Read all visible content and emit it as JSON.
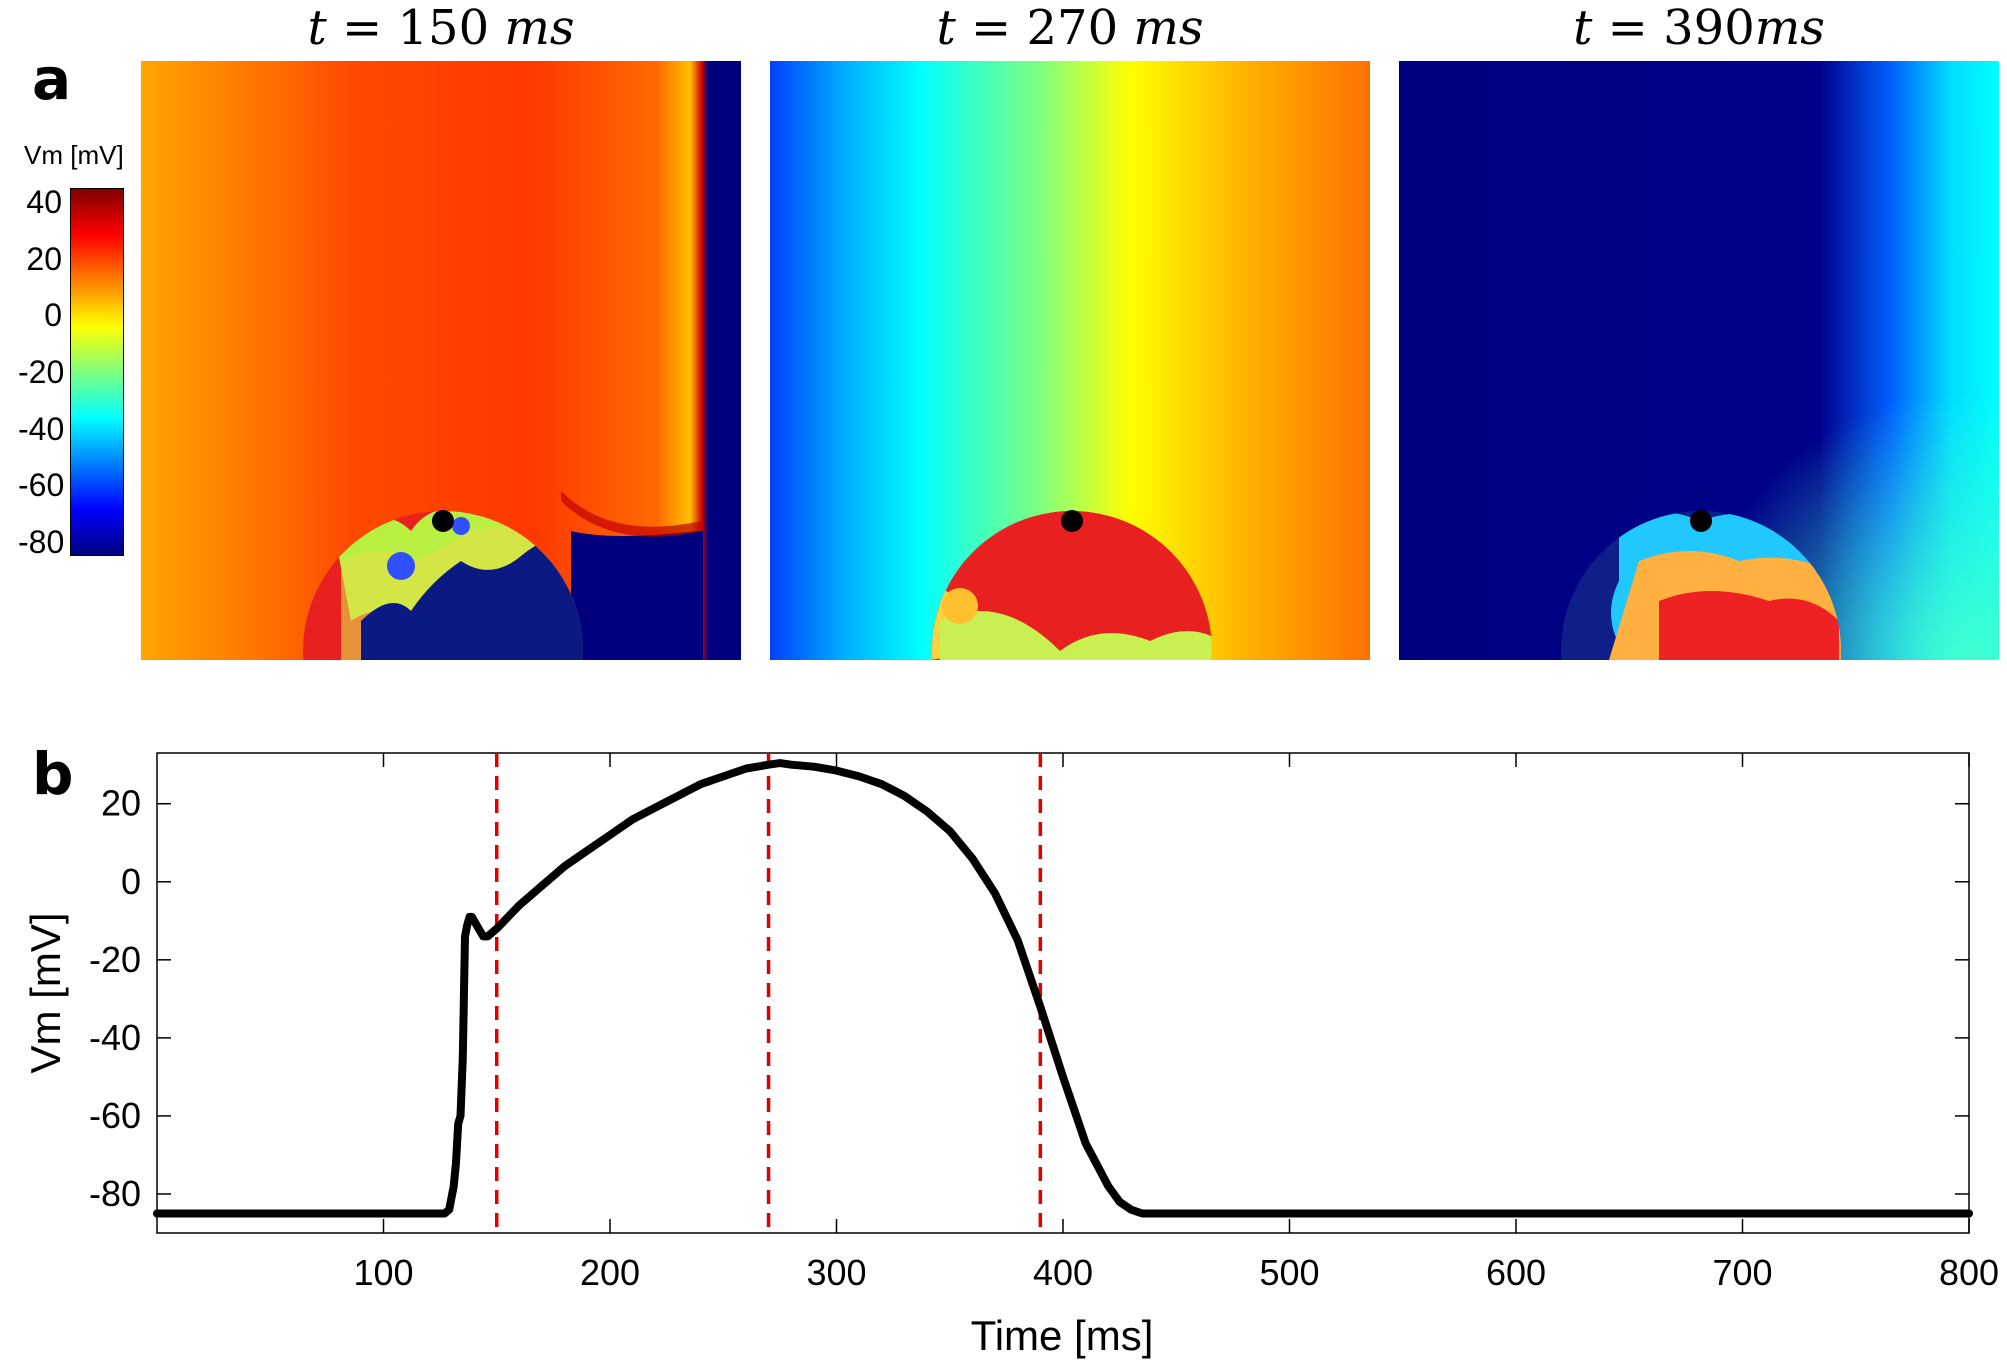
{
  "panel_a": {
    "label": "a",
    "snapshots": [
      {
        "time_value": "150",
        "unit": "ms",
        "spaced_unit": true
      },
      {
        "time_value": "270",
        "unit": "ms",
        "spaced_unit": true
      },
      {
        "time_value": "390",
        "unit": "ms",
        "spaced_unit": false
      }
    ],
    "colorbar": {
      "title": "Vm [mV]",
      "ticks": [
        "40",
        "20",
        "0",
        "-20",
        "-40",
        "-60",
        "-80"
      ],
      "colormap": [
        "#00007f",
        "#0000ff",
        "#007fff",
        "#00ffff",
        "#7fff7f",
        "#ffff00",
        "#ff7f00",
        "#ff0000",
        "#7f0000"
      ]
    }
  },
  "panel_b": {
    "label": "b"
  },
  "chart_data": {
    "type": "line",
    "xlabel": "Time [ms]",
    "ylabel": "Vm [mV]",
    "xlim": [
      0,
      800
    ],
    "ylim": [
      -90,
      33
    ],
    "xticks": [
      100,
      200,
      300,
      400,
      500,
      600,
      700,
      800
    ],
    "yticks": [
      20,
      0,
      -20,
      -40,
      -60,
      -80
    ],
    "grid": false,
    "series": [
      {
        "color": "#000000",
        "x": [
          0,
          100,
          120,
          127,
          129,
          131,
          132,
          133,
          134,
          135,
          136,
          137,
          138,
          139,
          140,
          142,
          144,
          146,
          148,
          150,
          155,
          160,
          170,
          180,
          190,
          200,
          210,
          220,
          230,
          240,
          250,
          260,
          270,
          275,
          280,
          290,
          300,
          310,
          320,
          330,
          340,
          350,
          360,
          370,
          380,
          390,
          400,
          410,
          420,
          425,
          430,
          435,
          440,
          460,
          500,
          600,
          700,
          800
        ],
        "y": [
          -85,
          -85,
          -85,
          -85,
          -84,
          -78,
          -72,
          -62,
          -60,
          -45,
          -14,
          -11,
          -9,
          -9,
          -10,
          -12,
          -14,
          -14,
          -13,
          -12,
          -9,
          -6,
          -1,
          4,
          8,
          12,
          16,
          19,
          22,
          25,
          27,
          29,
          30,
          30.4,
          30,
          29.5,
          28.5,
          27,
          25,
          22,
          18,
          13,
          6,
          -3,
          -15,
          -32,
          -50,
          -67,
          -78,
          -82,
          -84,
          -85,
          -85,
          -85,
          -85,
          -85,
          -85,
          -85
        ]
      }
    ],
    "reference_lines": {
      "x": [
        150,
        270,
        390
      ],
      "color": "#e00000",
      "style": "dashed"
    }
  }
}
